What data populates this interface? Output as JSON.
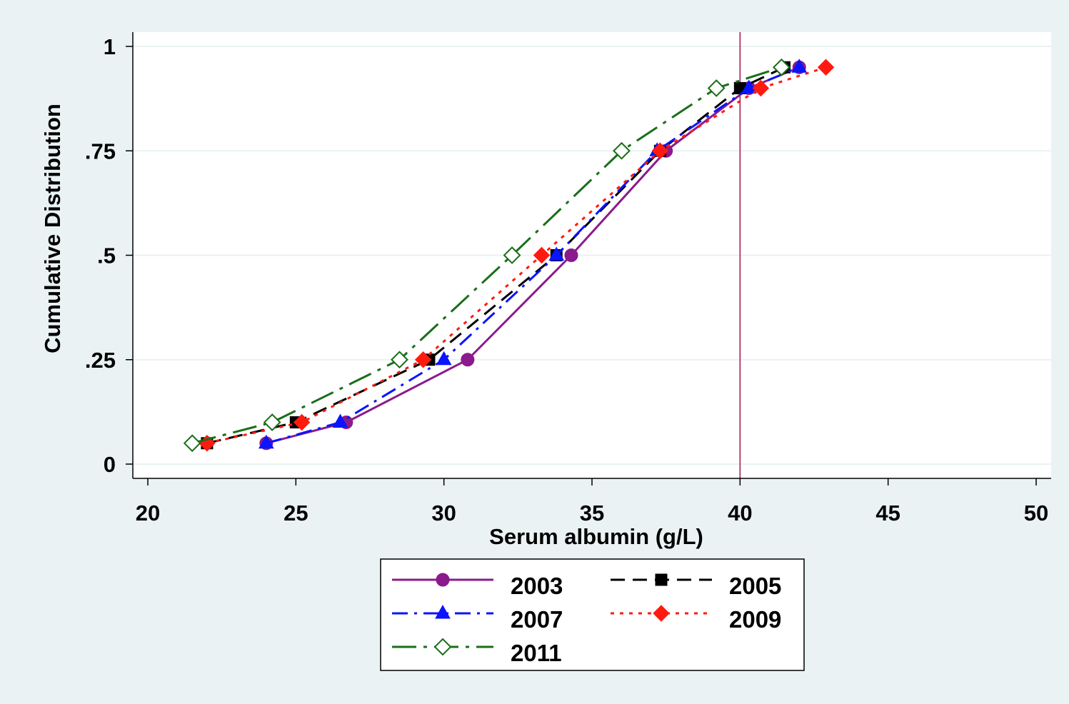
{
  "colors": {
    "background": "#eaf2f3",
    "plot_background": "#ffffff",
    "gridline": "#eaf2f3",
    "reference_line": "#a0144f",
    "series": {
      "2003": "#8b1a8c",
      "2005": "#000000",
      "2007": "#0a14ff",
      "2009": "#ff1a10",
      "2011": "#1a6e1a"
    }
  },
  "chart_data": {
    "type": "line",
    "title": "",
    "xlabel": "Serum albumin (g/L)",
    "ylabel": "Cumulative Distribution",
    "xlim": [
      20,
      50
    ],
    "ylim": [
      0,
      1
    ],
    "x_ticks": [
      20,
      25,
      30,
      35,
      40,
      45,
      50
    ],
    "x_tick_labels": [
      "20",
      "25",
      "30",
      "35",
      "40",
      "45",
      "50"
    ],
    "y_ticks": [
      0,
      0.25,
      0.5,
      0.75,
      1
    ],
    "y_tick_labels": [
      "0",
      ".25",
      ".5",
      ".75",
      "1"
    ],
    "grid": "horizontal",
    "reference_line_x": 40,
    "legend_position": "bottom",
    "series": [
      {
        "name": "2003",
        "line": "solid",
        "marker": "circle",
        "marker_fill": "filled",
        "x": [
          24.0,
          26.7,
          30.8,
          34.3,
          37.5,
          40.3,
          42.0
        ],
        "y": [
          0.05,
          0.1,
          0.25,
          0.5,
          0.75,
          0.9,
          0.95
        ]
      },
      {
        "name": "2005",
        "line": "dash",
        "marker": "square",
        "marker_fill": "filled",
        "x": [
          22.0,
          25.0,
          29.5,
          33.8,
          37.3,
          40.0,
          41.5
        ],
        "y": [
          0.05,
          0.1,
          0.25,
          0.5,
          0.75,
          0.9,
          0.95
        ]
      },
      {
        "name": "2007",
        "line": "dash-dot",
        "marker": "triangle",
        "marker_fill": "filled",
        "x": [
          24.0,
          26.5,
          30.0,
          33.8,
          37.2,
          40.3,
          42.0
        ],
        "y": [
          0.05,
          0.1,
          0.25,
          0.5,
          0.75,
          0.9,
          0.95
        ]
      },
      {
        "name": "2009",
        "line": "dot",
        "marker": "diamond",
        "marker_fill": "filled",
        "x": [
          22.0,
          25.2,
          29.3,
          33.3,
          37.3,
          40.7,
          42.9
        ],
        "y": [
          0.05,
          0.1,
          0.25,
          0.5,
          0.75,
          0.9,
          0.95
        ]
      },
      {
        "name": "2011",
        "line": "long-dash-dot",
        "marker": "diamond",
        "marker_fill": "hollow",
        "x": [
          21.5,
          24.2,
          28.5,
          32.3,
          36.0,
          39.2,
          41.4
        ],
        "y": [
          0.05,
          0.1,
          0.25,
          0.5,
          0.75,
          0.9,
          0.95
        ]
      }
    ],
    "legend": {
      "rows": [
        [
          "2003",
          "2005"
        ],
        [
          "2007",
          "2009"
        ],
        [
          "2011"
        ]
      ]
    }
  }
}
